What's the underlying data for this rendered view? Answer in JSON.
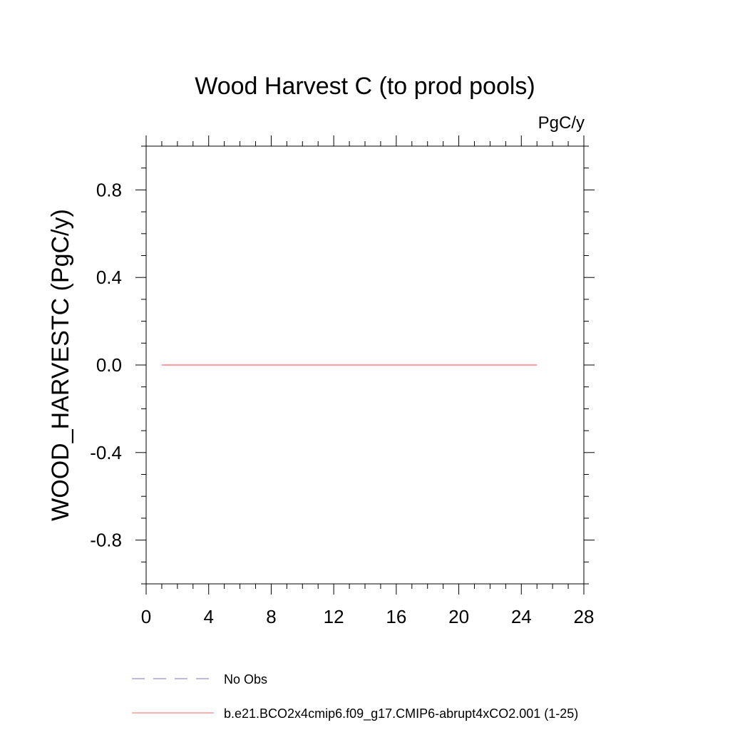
{
  "chart_data": {
    "type": "line",
    "title": "Wood Harvest C (to prod pools)",
    "units_label": "PgC/y",
    "xlabel": "",
    "ylabel": "WOOD_HARVESTC  (PgC/y)",
    "xlim": [
      0,
      28
    ],
    "ylim": [
      -1.0,
      1.0
    ],
    "x_ticks": [
      0,
      4,
      8,
      12,
      16,
      20,
      24,
      28
    ],
    "x_tick_labels": [
      "0",
      "4",
      "8",
      "12",
      "16",
      "20",
      "24",
      "28"
    ],
    "x_minor_step": 1,
    "y_ticks": [
      0.8,
      0.4,
      0.0,
      -0.4,
      -0.8
    ],
    "y_tick_labels": [
      "0.8",
      "0.4",
      "0.0",
      "-0.4",
      "-0.8"
    ],
    "y_minor_step": 0.1,
    "grid": false,
    "legend_position": "bottom",
    "series": [
      {
        "name": "No Obs",
        "color": "#7777cc",
        "dash": "dashed",
        "x": [],
        "y": []
      },
      {
        "name": "b.e21.BCO2x4cmip6.f09_g17.CMIP6-abrupt4xCO2.001 (1-25)",
        "color": "#ff6666",
        "dash": "solid",
        "x": [
          1,
          2,
          3,
          4,
          5,
          6,
          7,
          8,
          9,
          10,
          11,
          12,
          13,
          14,
          15,
          16,
          17,
          18,
          19,
          20,
          21,
          22,
          23,
          24,
          25
        ],
        "y": [
          0,
          0,
          0,
          0,
          0,
          0,
          0,
          0,
          0,
          0,
          0,
          0,
          0,
          0,
          0,
          0,
          0,
          0,
          0,
          0,
          0,
          0,
          0,
          0,
          0
        ]
      }
    ]
  }
}
